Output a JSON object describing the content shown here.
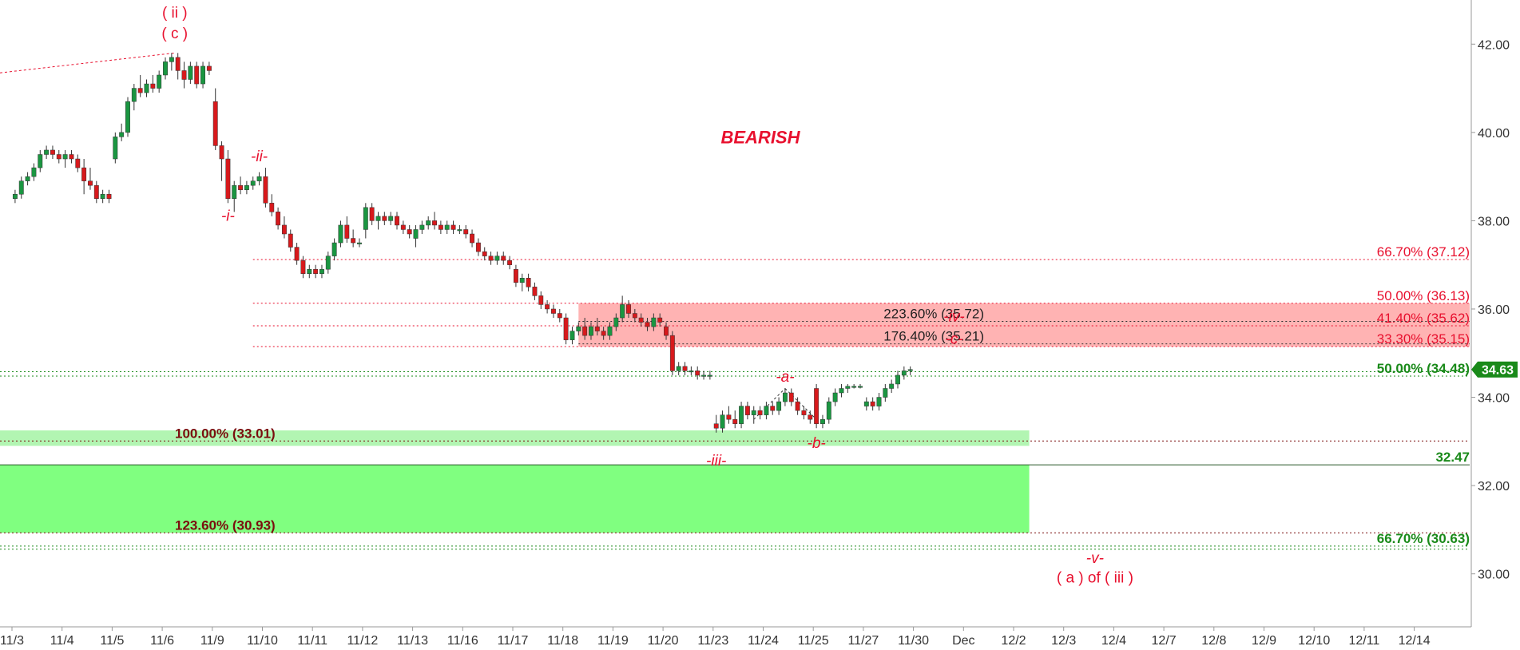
{
  "chart_data": {
    "type": "candlestick",
    "title": "",
    "ylim": [
      28.8,
      43.0
    ],
    "y_ticks": [
      30.0,
      32.0,
      34.0,
      36.0,
      38.0,
      40.0,
      42.0
    ],
    "y_tick_labels": [
      "30.00",
      "32.00",
      "34.00",
      "36.00",
      "38.00",
      "40.00",
      "42.00"
    ],
    "x_tick_labels": [
      "11/3",
      "11/4",
      "11/5",
      "11/6",
      "11/9",
      "11/10",
      "11/11",
      "11/12",
      "11/13",
      "11/16",
      "11/17",
      "11/18",
      "11/19",
      "11/20",
      "11/23",
      "11/24",
      "11/25",
      "11/27",
      "11/30",
      "Dec",
      "12/2",
      "12/3",
      "12/4",
      "12/7",
      "12/8",
      "12/9",
      "12/10",
      "12/11",
      "12/14"
    ],
    "candles_per_session": 8,
    "last_price": "34.63",
    "colors": {
      "up": "#1a9641",
      "down": "#d7191c",
      "wick": "#333333",
      "last_price_tag": "#1a8a1a"
    },
    "ohlc": [
      [
        38.5,
        38.7,
        38.4,
        38.6
      ],
      [
        38.6,
        39.0,
        38.5,
        38.9
      ],
      [
        38.9,
        39.1,
        38.8,
        39.0
      ],
      [
        39.0,
        39.3,
        38.9,
        39.2
      ],
      [
        39.2,
        39.6,
        39.1,
        39.5
      ],
      [
        39.5,
        39.7,
        39.4,
        39.6
      ],
      [
        39.6,
        39.7,
        39.4,
        39.5
      ],
      [
        39.5,
        39.6,
        39.3,
        39.4
      ],
      [
        39.4,
        39.6,
        39.2,
        39.5
      ],
      [
        39.5,
        39.6,
        39.3,
        39.4
      ],
      [
        39.4,
        39.5,
        39.1,
        39.2
      ],
      [
        39.2,
        39.4,
        38.6,
        38.9
      ],
      [
        38.9,
        39.2,
        38.7,
        38.8
      ],
      [
        38.8,
        38.9,
        38.4,
        38.5
      ],
      [
        38.5,
        38.7,
        38.4,
        38.6
      ],
      [
        38.6,
        38.7,
        38.4,
        38.5
      ],
      [
        39.4,
        40.0,
        39.3,
        39.9
      ],
      [
        39.9,
        40.2,
        39.8,
        40.0
      ],
      [
        40.0,
        40.8,
        39.9,
        40.7
      ],
      [
        40.7,
        41.1,
        40.5,
        41.0
      ],
      [
        41.0,
        41.3,
        40.8,
        40.9
      ],
      [
        40.9,
        41.2,
        40.8,
        41.1
      ],
      [
        41.1,
        41.3,
        40.9,
        41.0
      ],
      [
        41.0,
        41.4,
        40.9,
        41.3
      ],
      [
        41.3,
        41.7,
        41.2,
        41.6
      ],
      [
        41.6,
        41.8,
        41.4,
        41.7
      ],
      [
        41.7,
        41.8,
        41.2,
        41.4
      ],
      [
        41.4,
        41.6,
        41.0,
        41.2
      ],
      [
        41.2,
        41.6,
        41.1,
        41.5
      ],
      [
        41.5,
        41.6,
        41.0,
        41.1
      ],
      [
        41.1,
        41.6,
        41.0,
        41.5
      ],
      [
        41.5,
        41.6,
        41.3,
        41.4
      ],
      [
        40.7,
        41.0,
        39.6,
        39.7
      ],
      [
        39.7,
        39.8,
        38.9,
        39.4
      ],
      [
        39.4,
        39.6,
        38.4,
        38.5
      ],
      [
        38.5,
        38.9,
        38.2,
        38.8
      ],
      [
        38.8,
        39.0,
        38.6,
        38.7
      ],
      [
        38.7,
        38.9,
        38.6,
        38.8
      ],
      [
        38.8,
        39.0,
        38.7,
        38.9
      ],
      [
        38.9,
        39.1,
        38.8,
        39.0
      ],
      [
        39.0,
        39.2,
        38.3,
        38.4
      ],
      [
        38.4,
        38.6,
        38.1,
        38.2
      ],
      [
        38.2,
        38.3,
        37.8,
        37.9
      ],
      [
        37.9,
        38.1,
        37.6,
        37.7
      ],
      [
        37.7,
        37.8,
        37.3,
        37.4
      ],
      [
        37.4,
        37.5,
        37.0,
        37.1
      ],
      [
        37.1,
        37.2,
        36.7,
        36.8
      ],
      [
        36.8,
        37.0,
        36.7,
        36.9
      ],
      [
        36.9,
        37.0,
        36.7,
        36.8
      ],
      [
        36.8,
        37.0,
        36.7,
        36.9
      ],
      [
        36.9,
        37.3,
        36.8,
        37.2
      ],
      [
        37.2,
        37.6,
        37.1,
        37.5
      ],
      [
        37.5,
        38.0,
        37.4,
        37.9
      ],
      [
        37.9,
        38.1,
        37.5,
        37.6
      ],
      [
        37.6,
        37.8,
        37.4,
        37.5
      ],
      [
        37.5,
        37.6,
        37.4,
        37.5
      ],
      [
        37.8,
        38.4,
        37.6,
        38.3
      ],
      [
        38.3,
        38.4,
        37.9,
        38.0
      ],
      [
        38.0,
        38.2,
        37.8,
        38.1
      ],
      [
        38.1,
        38.2,
        37.9,
        38.0
      ],
      [
        38.0,
        38.2,
        37.9,
        38.1
      ],
      [
        38.1,
        38.2,
        37.8,
        37.9
      ],
      [
        37.9,
        38.0,
        37.7,
        37.8
      ],
      [
        37.8,
        37.9,
        37.6,
        37.7
      ],
      [
        37.6,
        37.9,
        37.4,
        37.8
      ],
      [
        37.8,
        38.0,
        37.7,
        37.9
      ],
      [
        37.9,
        38.1,
        37.8,
        38.0
      ],
      [
        38.0,
        38.2,
        37.8,
        37.9
      ],
      [
        37.9,
        38.0,
        37.7,
        37.8
      ],
      [
        37.8,
        38.0,
        37.7,
        37.9
      ],
      [
        37.9,
        38.0,
        37.7,
        37.8
      ],
      [
        37.8,
        37.9,
        37.7,
        37.8
      ],
      [
        37.8,
        37.9,
        37.6,
        37.7
      ],
      [
        37.7,
        37.8,
        37.4,
        37.5
      ],
      [
        37.5,
        37.6,
        37.2,
        37.3
      ],
      [
        37.3,
        37.4,
        37.1,
        37.2
      ],
      [
        37.2,
        37.3,
        37.0,
        37.1
      ],
      [
        37.1,
        37.3,
        37.0,
        37.2
      ],
      [
        37.2,
        37.3,
        37.0,
        37.1
      ],
      [
        37.1,
        37.2,
        36.9,
        37.0
      ],
      [
        36.9,
        37.0,
        36.5,
        36.6
      ],
      [
        36.6,
        36.8,
        36.4,
        36.7
      ],
      [
        36.7,
        36.8,
        36.4,
        36.5
      ],
      [
        36.5,
        36.6,
        36.2,
        36.3
      ],
      [
        36.3,
        36.4,
        36.0,
        36.1
      ],
      [
        36.1,
        36.2,
        35.9,
        36.0
      ],
      [
        36.0,
        36.1,
        35.8,
        35.9
      ],
      [
        35.9,
        36.0,
        35.7,
        35.8
      ],
      [
        35.8,
        35.9,
        35.2,
        35.3
      ],
      [
        35.3,
        35.6,
        35.2,
        35.5
      ],
      [
        35.5,
        35.7,
        35.4,
        35.6
      ],
      [
        35.6,
        35.8,
        35.3,
        35.4
      ],
      [
        35.4,
        35.7,
        35.3,
        35.6
      ],
      [
        35.6,
        35.8,
        35.4,
        35.5
      ],
      [
        35.5,
        35.6,
        35.3,
        35.4
      ],
      [
        35.4,
        35.7,
        35.3,
        35.6
      ],
      [
        35.6,
        35.9,
        35.5,
        35.8
      ],
      [
        35.8,
        36.3,
        35.7,
        36.1
      ],
      [
        36.1,
        36.2,
        35.8,
        35.9
      ],
      [
        35.9,
        36.0,
        35.7,
        35.8
      ],
      [
        35.8,
        35.9,
        35.6,
        35.7
      ],
      [
        35.7,
        35.8,
        35.5,
        35.6
      ],
      [
        35.6,
        35.9,
        35.5,
        35.8
      ],
      [
        35.8,
        35.9,
        35.6,
        35.7
      ],
      [
        35.6,
        35.7,
        35.3,
        35.4
      ],
      [
        35.4,
        35.5,
        34.5,
        34.6
      ],
      [
        34.6,
        34.8,
        34.5,
        34.7
      ],
      [
        34.7,
        34.8,
        34.5,
        34.6
      ],
      [
        34.6,
        34.7,
        34.5,
        34.6
      ],
      [
        34.6,
        34.7,
        34.4,
        34.5
      ],
      [
        34.5,
        34.6,
        34.4,
        34.5
      ],
      [
        34.5,
        34.6,
        34.4,
        34.5
      ],
      [
        33.4,
        33.6,
        33.2,
        33.3
      ],
      [
        33.3,
        33.7,
        33.2,
        33.6
      ],
      [
        33.6,
        33.8,
        33.4,
        33.5
      ],
      [
        33.5,
        33.7,
        33.3,
        33.4
      ],
      [
        33.4,
        33.9,
        33.3,
        33.8
      ],
      [
        33.8,
        33.9,
        33.5,
        33.6
      ],
      [
        33.6,
        33.8,
        33.4,
        33.7
      ],
      [
        33.7,
        33.8,
        33.5,
        33.6
      ],
      [
        33.6,
        33.9,
        33.5,
        33.8
      ],
      [
        33.8,
        33.9,
        33.6,
        33.7
      ],
      [
        33.7,
        34.0,
        33.6,
        33.9
      ],
      [
        33.9,
        34.2,
        33.8,
        34.1
      ],
      [
        34.1,
        34.2,
        33.8,
        33.9
      ],
      [
        33.9,
        34.0,
        33.6,
        33.7
      ],
      [
        33.7,
        33.8,
        33.5,
        33.6
      ],
      [
        33.6,
        33.7,
        33.4,
        33.5
      ],
      [
        34.2,
        34.3,
        33.3,
        33.4
      ],
      [
        33.4,
        33.6,
        33.3,
        33.5
      ],
      [
        33.5,
        34.0,
        33.4,
        33.9
      ],
      [
        33.9,
        34.2,
        33.8,
        34.1
      ],
      [
        34.1,
        34.3,
        34.0,
        34.2
      ],
      [
        34.2,
        34.3,
        34.1,
        34.25
      ],
      [
        34.25,
        34.3,
        34.2,
        34.25
      ],
      [
        34.25,
        34.3,
        34.2,
        34.25
      ],
      [
        33.8,
        34.0,
        33.7,
        33.9
      ],
      [
        33.9,
        34.0,
        33.7,
        33.8
      ],
      [
        33.8,
        34.1,
        33.7,
        34.0
      ],
      [
        34.0,
        34.3,
        33.9,
        34.2
      ],
      [
        34.2,
        34.4,
        34.1,
        34.3
      ],
      [
        34.3,
        34.6,
        34.2,
        34.5
      ],
      [
        34.5,
        34.7,
        34.4,
        34.6
      ],
      [
        34.6,
        34.7,
        34.5,
        34.63
      ]
    ],
    "wave_annotations": [
      {
        "text": "( ii )",
        "line2": "( c )",
        "x_index": 25.5,
        "y": 42.6,
        "style": "upright"
      },
      {
        "text": "-ii-",
        "x_index": 39,
        "y": 39.35,
        "style": "italic"
      },
      {
        "text": "-i-",
        "x_index": 34,
        "y": 38.0,
        "style": "italic"
      },
      {
        "text": "-iii-",
        "x_index": 112,
        "y": 32.45,
        "style": "italic"
      },
      {
        "text": "-a-",
        "x_index": 123,
        "y": 34.35,
        "style": "italic"
      },
      {
        "text": "-b-",
        "x_index": 128,
        "y": 32.85,
        "style": "italic"
      },
      {
        "text": "-iv-",
        "x_index": 150,
        "y": 35.72,
        "style": "italic"
      },
      {
        "text": "-c-",
        "x_index": 150,
        "y": 35.21,
        "style": "italic"
      },
      {
        "text": "-v-",
        "x_index": 172.5,
        "y": 30.25,
        "style": "italic"
      },
      {
        "text": "( a ) of ( iii )",
        "x_index": 172.5,
        "y": 29.8,
        "style": "upright"
      }
    ],
    "headline": "BEARISH",
    "zones": [
      {
        "name": "resistance",
        "y_from": 35.15,
        "y_to": 36.13,
        "x_from_index": 90,
        "color": "#ffb3b3"
      },
      {
        "name": "support-light",
        "y_from": 32.9,
        "y_to": 33.25,
        "x_from_index": -8,
        "x_to_index": 162,
        "color": "#b2f5b2"
      },
      {
        "name": "support",
        "y_from": 30.93,
        "y_to": 32.47,
        "x_from_index": -8,
        "x_to_index": 162,
        "color": "#80ff80"
      }
    ],
    "levels": [
      {
        "y": 37.12,
        "label": "66.70% (37.12)",
        "group": "red-right",
        "x_from_index": 38
      },
      {
        "y": 36.13,
        "label": "50.00% (36.13)",
        "group": "red-right",
        "x_from_index": 38
      },
      {
        "y": 35.62,
        "label": "41.40% (35.62)",
        "group": "red-right",
        "x_from_index": 38
      },
      {
        "y": 35.15,
        "label": "33.30% (35.15)",
        "group": "red-right",
        "x_from_index": 38
      },
      {
        "y": 35.72,
        "label": "223.60% (35.72)",
        "group": "dark-mid",
        "x_from_index": 90
      },
      {
        "y": 35.21,
        "label": "176.40% (35.21)",
        "group": "dark-mid",
        "x_from_index": 90
      },
      {
        "y": 34.48,
        "label": "50.00% (34.48)",
        "group": "green-right",
        "x_from_index": -8
      },
      {
        "y": 34.58,
        "label": "",
        "group": "green-plain",
        "x_from_index": -8
      },
      {
        "y": 33.01,
        "label": "100.00% (33.01)",
        "group": "maroon-left",
        "x_from_index": -8
      },
      {
        "y": 32.47,
        "label": "32.47",
        "group": "solid-right",
        "x_from_index": -8
      },
      {
        "y": 30.93,
        "label": "123.60% (30.93)",
        "group": "maroon-left",
        "x_from_index": -8
      },
      {
        "y": 30.63,
        "label": "66.70% (30.63)",
        "group": "green-right",
        "x_from_index": -8
      },
      {
        "y": 30.56,
        "label": "",
        "group": "green-plain",
        "x_from_index": -8
      }
    ],
    "trend_lines": [
      {
        "from": [
          -8,
          41.35
        ],
        "to": [
          25.5,
          41.8
        ]
      },
      {
        "from": [
          118,
          33.5
        ],
        "to": [
          123,
          34.2
        ]
      },
      {
        "from": [
          123,
          34.2
        ],
        "to": [
          128,
          33.5
        ]
      }
    ]
  }
}
